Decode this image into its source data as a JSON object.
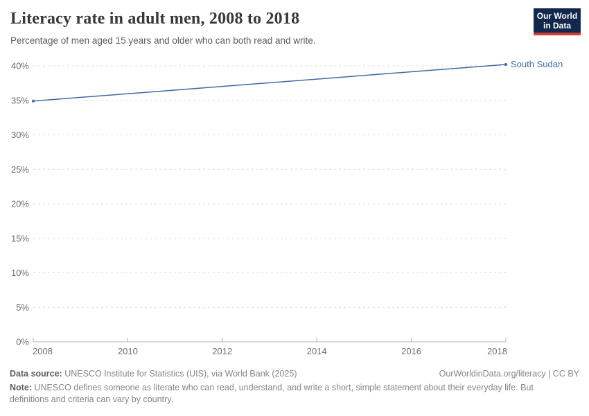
{
  "header": {
    "title": "Literacy rate in adult men, 2008 to 2018",
    "subtitle": "Percentage of men aged 15 years and older who can both read and write.",
    "logo": {
      "line1": "Our World",
      "line2": "in Data",
      "bg_color": "#12294b",
      "accent_color": "#cf3e36"
    }
  },
  "chart_data": {
    "type": "line",
    "title": "Literacy rate in adult men, 2008 to 2018",
    "subtitle": "Percentage of men aged 15 years and older who can both read and write.",
    "series": [
      {
        "name": "South Sudan",
        "color": "#3d6aa8",
        "points": [
          [
            2008,
            34.9
          ],
          [
            2018,
            40.2
          ]
        ]
      }
    ],
    "xlim": [
      2008,
      2018
    ],
    "ylim": [
      0,
      40
    ],
    "xticks": [
      2008,
      2010,
      2012,
      2014,
      2016,
      2018
    ],
    "yticks": [
      0,
      5,
      10,
      15,
      20,
      25,
      30,
      35,
      40
    ],
    "ytick_suffix": "%",
    "grid": "horizontal-dashed",
    "legend_position": "end-of-line-label"
  },
  "colors": {
    "axis": "#b3b3b3",
    "grid": "#dcdcdc",
    "tick_label": "#6e6e6e"
  },
  "footer": {
    "datasource_label": "Data source:",
    "datasource_text": " UNESCO Institute for Statistics (UIS), via World Bank (2025)",
    "license_text": "OurWorldinData.org/literacy | CC BY",
    "note_label": "Note:",
    "note_text": " UNESCO defines someone as literate who can read, understand, and write a short, simple statement about their everyday life. But definitions and criteria can vary by country."
  }
}
